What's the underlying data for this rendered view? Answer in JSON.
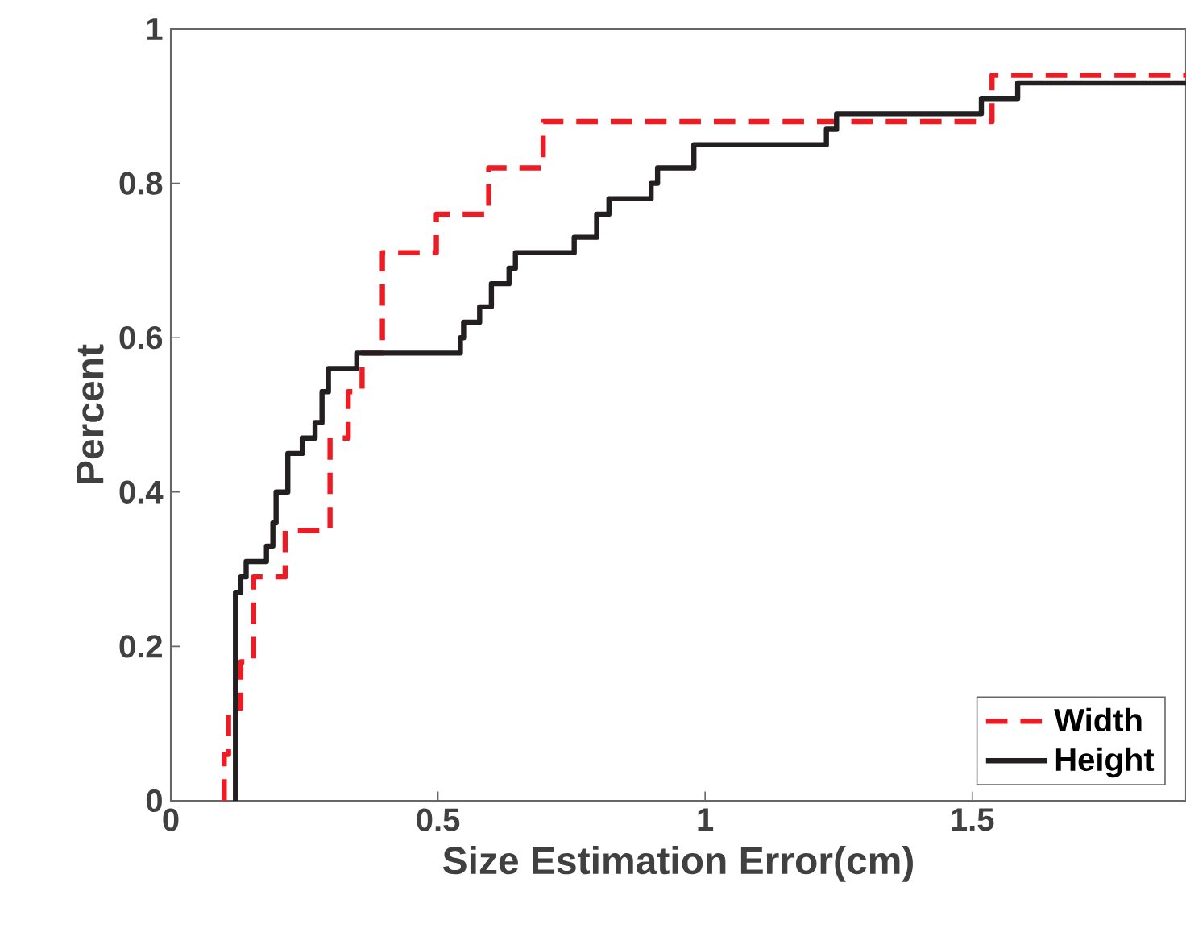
{
  "chart_data": {
    "type": "step",
    "xlabel": "Size Estimation Error(cm)",
    "ylabel": "Percent",
    "xlim": [
      0,
      1.9
    ],
    "xticks": [
      0,
      0.5,
      1,
      1.5
    ],
    "ylim": [
      0,
      1
    ],
    "yticks": [
      0,
      0.2,
      0.4,
      0.6,
      0.8,
      1
    ],
    "legend": "bottom right",
    "grid": false,
    "series": [
      {
        "name": "Width",
        "color": "#ed1c24",
        "line_style": "dashed",
        "x": [
          0.1,
          0.1,
          0.108,
          0.131,
          0.155,
          0.214,
          0.298,
          0.332,
          0.358,
          0.396,
          0.497,
          0.595,
          0.697,
          1.537,
          1.9
        ],
        "values": [
          0,
          0.06,
          0.12,
          0.18,
          0.29,
          0.35,
          0.47,
          0.53,
          0.58,
          0.71,
          0.76,
          0.82,
          0.88,
          0.94,
          0.94
        ]
      },
      {
        "name": "Height",
        "color": "#231f20",
        "line_style": "solid",
        "x": [
          0.121,
          0.121,
          0.131,
          0.141,
          0.179,
          0.191,
          0.197,
          0.219,
          0.246,
          0.27,
          0.283,
          0.295,
          0.348,
          0.542,
          0.548,
          0.578,
          0.6,
          0.633,
          0.645,
          0.755,
          0.797,
          0.82,
          0.899,
          0.911,
          0.979,
          1.227,
          1.246,
          1.517,
          1.585,
          1.9
        ],
        "values": [
          0,
          0.27,
          0.29,
          0.31,
          0.33,
          0.36,
          0.4,
          0.45,
          0.47,
          0.49,
          0.53,
          0.56,
          0.58,
          0.6,
          0.62,
          0.64,
          0.67,
          0.69,
          0.71,
          0.73,
          0.76,
          0.78,
          0.8,
          0.82,
          0.85,
          0.87,
          0.89,
          0.91,
          0.93,
          0.93
        ]
      }
    ]
  }
}
